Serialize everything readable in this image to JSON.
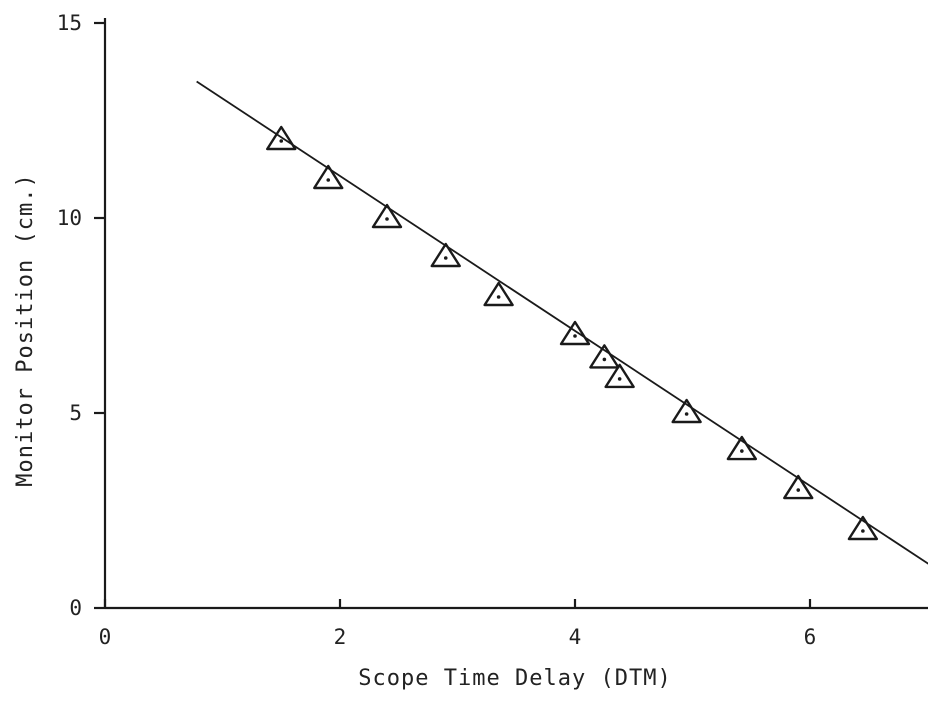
{
  "chart_data": {
    "type": "scatter",
    "title": "",
    "xlabel": "Scope Time Delay (DTM)",
    "ylabel": "Monitor Position (cm.)",
    "xlim": [
      0,
      7.2
    ],
    "ylim": [
      0,
      15
    ],
    "xticks": [
      0,
      2,
      4,
      6
    ],
    "yticks": [
      0,
      5,
      10,
      15
    ],
    "x_tick_labels": [
      "0",
      "2",
      "4",
      "6"
    ],
    "y_tick_labels": [
      "0",
      "5",
      "10",
      "15"
    ],
    "grid": false,
    "series": [
      {
        "marker": "triangle",
        "points": [
          {
            "x": 1.5,
            "y": 12.0
          },
          {
            "x": 1.9,
            "y": 11.0
          },
          {
            "x": 2.4,
            "y": 10.0
          },
          {
            "x": 2.9,
            "y": 9.0
          },
          {
            "x": 3.35,
            "y": 8.0
          },
          {
            "x": 4.0,
            "y": 7.0
          },
          {
            "x": 4.25,
            "y": 6.4
          },
          {
            "x": 4.38,
            "y": 5.9
          },
          {
            "x": 4.95,
            "y": 5.0
          },
          {
            "x": 5.42,
            "y": 4.05
          },
          {
            "x": 5.9,
            "y": 3.05
          },
          {
            "x": 6.45,
            "y": 2.0
          }
        ]
      }
    ],
    "fit_line": {
      "x": [
        0.78,
        7.2
      ],
      "y": [
        13.5,
        0.75
      ]
    }
  }
}
